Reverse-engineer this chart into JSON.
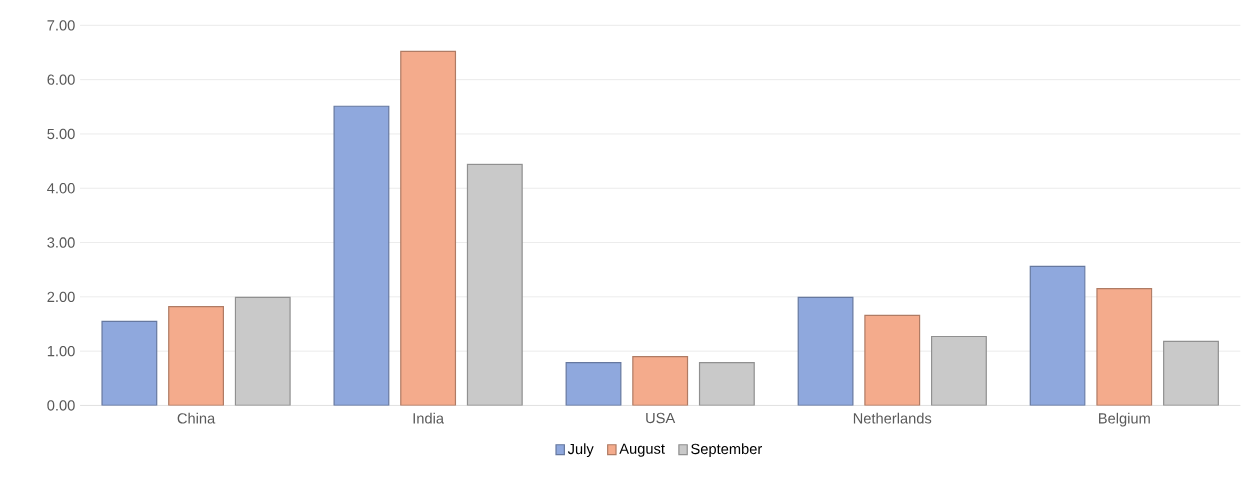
{
  "chart_data": {
    "type": "bar",
    "categories": [
      "China",
      "India",
      "USA",
      "Netherlands",
      "Belgium"
    ],
    "series": [
      {
        "name": "July",
        "color": "#8fa8dd",
        "values": [
          1.55,
          5.51,
          0.79,
          1.99,
          2.56
        ]
      },
      {
        "name": "August",
        "color": "#f4ab8c",
        "values": [
          1.82,
          6.52,
          0.9,
          1.66,
          2.15
        ]
      },
      {
        "name": "September",
        "color": "#c9c9c9",
        "values": [
          1.99,
          4.44,
          0.79,
          1.27,
          1.18
        ]
      }
    ],
    "ylim": [
      0,
      7
    ],
    "yticks": [
      {
        "value": 0,
        "label": "0.00"
      },
      {
        "value": 1,
        "label": "1.00"
      },
      {
        "value": 2,
        "label": "2.00"
      },
      {
        "value": 3,
        "label": "3.00"
      },
      {
        "value": 4,
        "label": "4.00"
      },
      {
        "value": 5,
        "label": "5.00"
      },
      {
        "value": 6,
        "label": "6.00"
      },
      {
        "value": 7,
        "label": "7.00"
      }
    ],
    "grid": "y",
    "legend": "bottom"
  }
}
